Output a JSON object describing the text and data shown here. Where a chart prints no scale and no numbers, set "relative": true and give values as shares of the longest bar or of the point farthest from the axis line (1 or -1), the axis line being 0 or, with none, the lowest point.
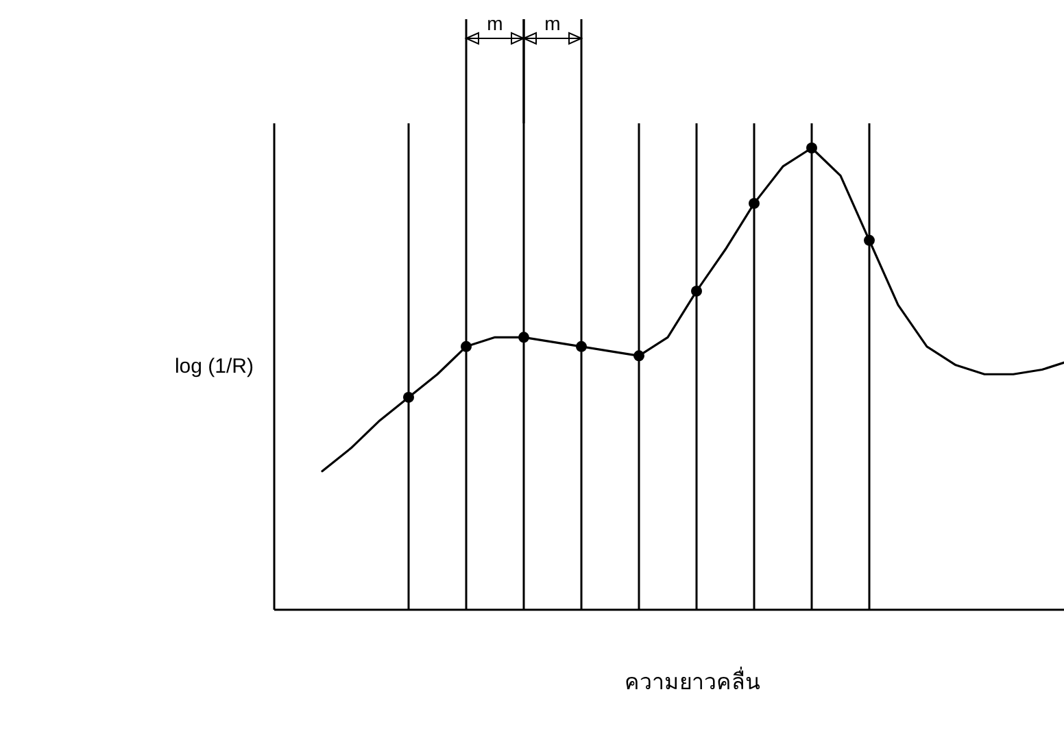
{
  "chart_data": {
    "type": "line",
    "relative": true,
    "xlabel": "ความยาวคลื่น",
    "ylabel": "log (1/R)",
    "annotations": [
      "m",
      "m"
    ],
    "categories": [
      null,
      null,
      null,
      null,
      null,
      null,
      null,
      null,
      null,
      null,
      null,
      null,
      null,
      null,
      null,
      null,
      null,
      null,
      null,
      null,
      null,
      null,
      null,
      null,
      null,
      null,
      null
    ],
    "series": [
      {
        "color": "#000000",
        "values": [
          0.3,
          0.35,
          0.41,
          0.46,
          0.51,
          0.57,
          0.59,
          0.59,
          0.58,
          0.57,
          0.56,
          0.55,
          0.59,
          0.69,
          0.78,
          0.88,
          0.96,
          1,
          0.94,
          0.8,
          0.66,
          0.57,
          0.53,
          0.51,
          0.51,
          0.52,
          0.54
        ]
      }
    ],
    "grid": "x"
  }
}
